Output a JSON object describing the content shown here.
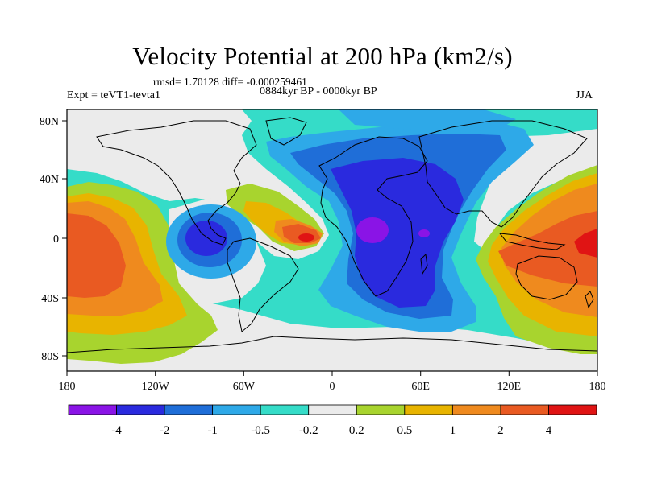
{
  "title": "Velocity Potential at 200 hPa (km2/s)",
  "stats": "rmsd= 1.70128 diff= -0.000259461",
  "experiment": "Expt = teVT1-tevta1",
  "period": "0884kyr BP - 0000kyr BP",
  "season": "JJA",
  "axes": {
    "lon_ticks": [
      "180",
      "120W",
      "60W",
      "0",
      "60E",
      "120E",
      "180"
    ],
    "lat_ticks": [
      "80N",
      "40N",
      "0",
      "40S",
      "80S"
    ]
  },
  "colorbar": {
    "colors": [
      "#8a14e6",
      "#2a2ade",
      "#1f6ed8",
      "#2ea9e8",
      "#35dcc8",
      "#ebebeb",
      "#a8d42e",
      "#e8b400",
      "#ef8a1e",
      "#e95a22",
      "#e01414"
    ],
    "labels": [
      "-4",
      "-2",
      "-1",
      "-0.5",
      "-0.2",
      "0.2",
      "0.5",
      "1",
      "2",
      "4"
    ]
  }
}
